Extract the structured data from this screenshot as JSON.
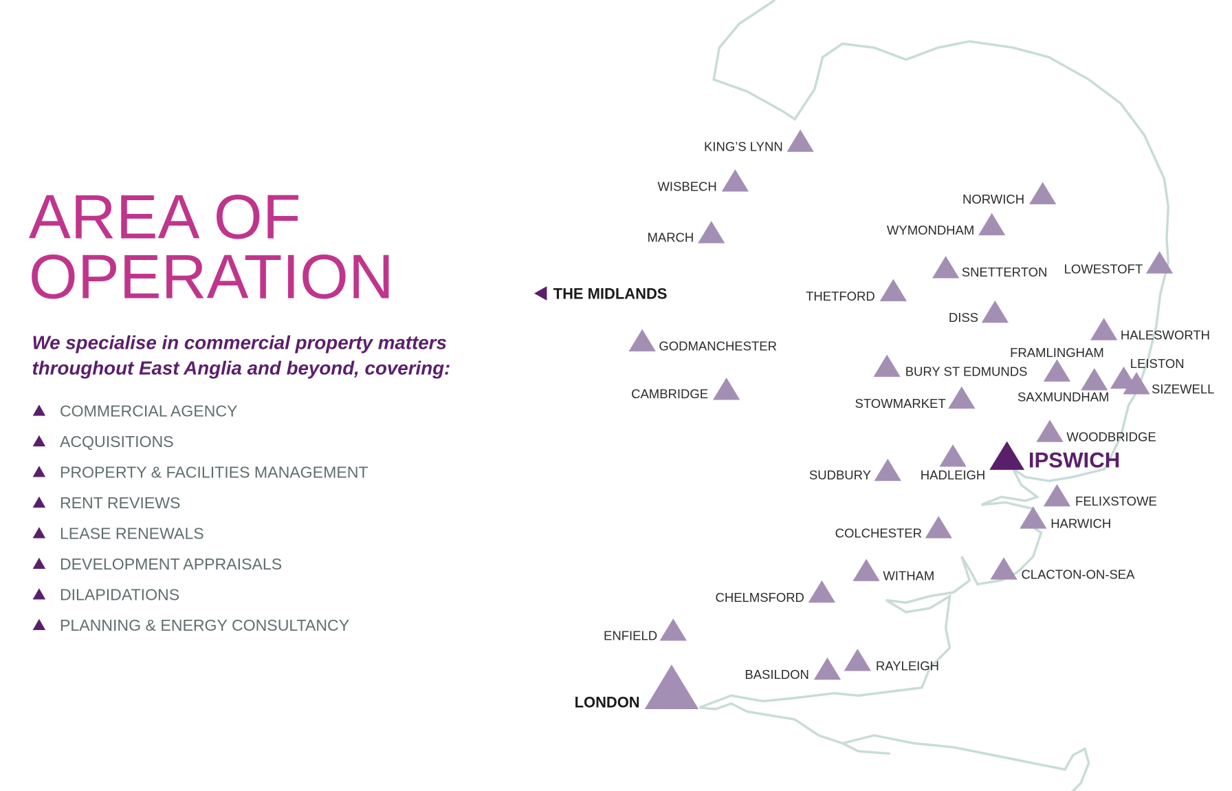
{
  "header": {
    "title_lines": [
      "AREA OF",
      "OPERATION"
    ],
    "intro_lines": [
      "We specialise in commercial property matters",
      "throughout East Anglia and beyond, covering:"
    ]
  },
  "services": [
    "COMMERCIAL AGENCY",
    "ACQUISITIONS",
    "PROPERTY & FACILITIES MANAGEMENT",
    "RENT REVIEWS",
    "LEASE RENEWALS",
    "DEVELOPMENT APPRAISALS",
    "DILAPIDATIONS",
    "PLANNING & ENERGY CONSULTANCY"
  ],
  "map": {
    "places": [
      "KING’S LYNN",
      "WISBECH",
      "MARCH",
      "NORWICH",
      "WYMONDHAM",
      "SNETTERTON",
      "LOWESTOFT",
      "THETFORD",
      "DISS",
      "HALESWORTH",
      "GODMANCHESTER",
      "FRAMLINGHAM",
      "LEISTON",
      "SIZEWELL",
      "BURY ST EDMUNDS",
      "SAXMUNDHAM",
      "CAMBRIDGE",
      "STOWMARKET",
      "WOODBRIDGE",
      "SUDBURY",
      "HADLEIGH",
      "FELIXSTOWE",
      "HARWICH",
      "COLCHESTER",
      "WITHAM",
      "CLACTON-ON-SEA",
      "CHELMSFORD",
      "ENFIELD",
      "BASILDON",
      "RAYLEIGH"
    ],
    "hub": "IPSWICH",
    "capital": "LONDON",
    "direction": "THE MIDLANDS"
  }
}
